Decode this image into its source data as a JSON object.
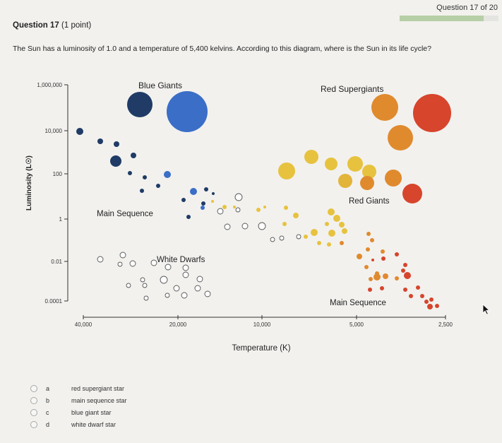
{
  "header": {
    "counter": "Question 17 of 20",
    "progress": 0.85
  },
  "question": {
    "title": "Question 17",
    "points": "(1 point)",
    "text": "The Sun has a luminosity of 1.0 and a temperature of 5,400 kelvins. According to this diagram, where is the Sun in its life cycle?"
  },
  "chart_data": {
    "type": "scatter",
    "xlabel": "Temperature (K)",
    "ylabel": "Luminosity (L☉)",
    "x_ticks": [
      "40,000",
      "20,000",
      "10,000",
      "5,000",
      "2,500"
    ],
    "y_ticks": [
      "1,000,000",
      "10,000",
      "100",
      "1",
      "0.01",
      "0.0001"
    ],
    "region_labels": [
      "Blue Giants",
      "Red Supergiants",
      "Red Giants",
      "Main Sequence",
      "White Dwarfs",
      "Main Sequence"
    ],
    "colors": {
      "navy": "#1f3b66",
      "blue": "#3a6ec7",
      "yellow": "#e7c23e",
      "gold": "#e2b43a",
      "orange": "#e08a2e",
      "red": "#d6452c"
    }
  },
  "options": [
    {
      "letter": "a",
      "label": "red supergiant star"
    },
    {
      "letter": "b",
      "label": "main sequence star"
    },
    {
      "letter": "c",
      "label": "blue giant star"
    },
    {
      "letter": "d",
      "label": "white dwarf star"
    }
  ]
}
